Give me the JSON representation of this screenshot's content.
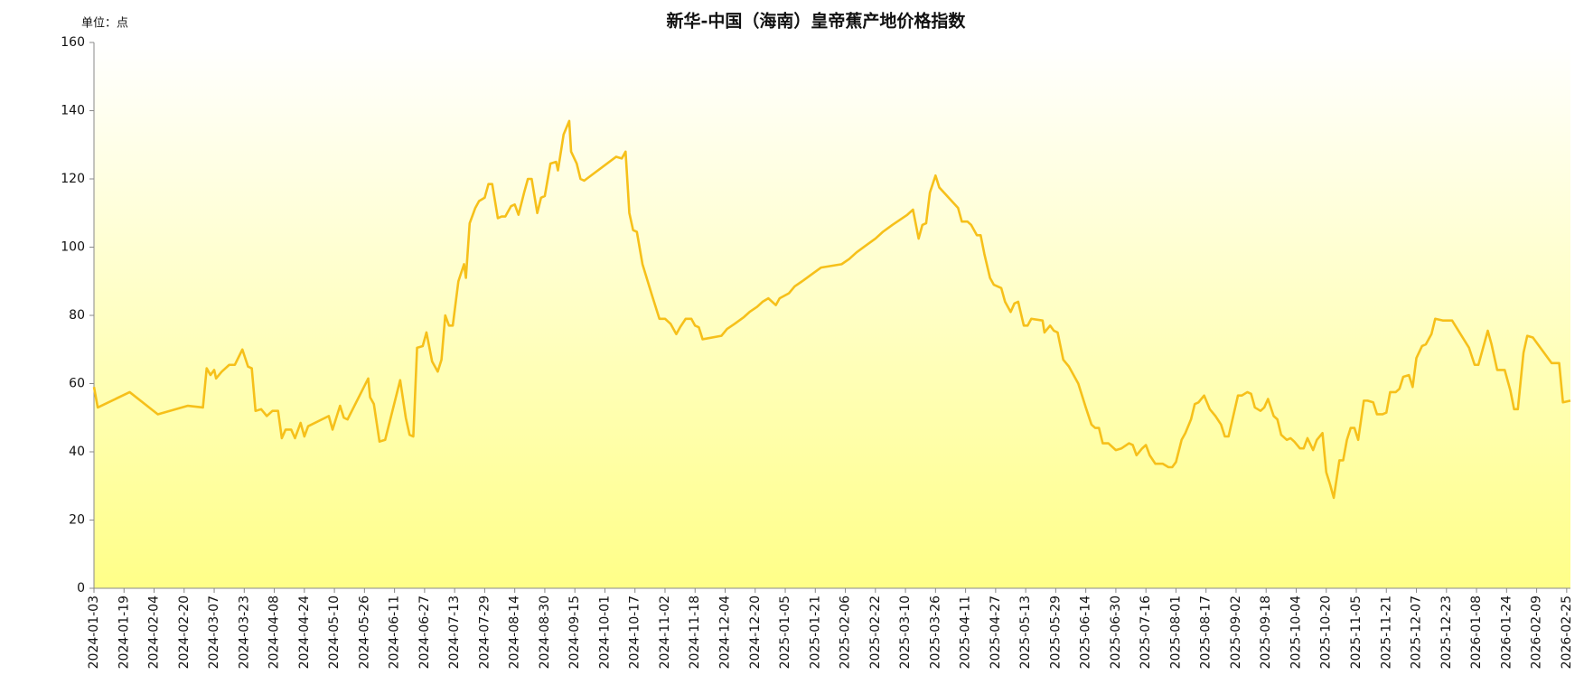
{
  "chart_data": {
    "type": "line",
    "title": "新华-中国（海南）皇帝蕉产地价格指数",
    "unit_label": "单位：点",
    "color": "#f6c01a",
    "xlim": [
      "2024-01-03",
      "2026-02-27"
    ],
    "xticks": [
      "2024-01-03",
      "2024-01-19",
      "2024-02-04",
      "2024-02-20",
      "2024-03-07",
      "2024-03-23",
      "2024-04-08",
      "2024-04-24",
      "2024-05-10",
      "2024-05-26",
      "2024-06-11",
      "2024-06-27",
      "2024-07-13",
      "2024-07-29",
      "2024-08-14",
      "2024-08-30",
      "2024-09-15",
      "2024-10-01",
      "2024-10-17",
      "2024-11-02",
      "2024-11-18",
      "2024-12-04",
      "2024-12-20",
      "2025-01-05",
      "2025-01-21",
      "2025-02-06",
      "2025-02-22",
      "2025-03-10",
      "2025-03-26",
      "2025-04-11",
      "2025-04-27",
      "2025-05-13",
      "2025-05-29",
      "2025-06-14",
      "2025-06-30",
      "2025-07-16",
      "2025-08-01",
      "2025-08-17",
      "2025-09-02",
      "2025-09-18",
      "2025-10-04",
      "2025-10-20",
      "2025-11-05",
      "2025-11-21",
      "2025-12-07",
      "2025-12-23",
      "2026-01-08",
      "2026-01-24",
      "2026-02-09",
      "2026-02-25"
    ],
    "ylim": [
      0,
      160
    ],
    "yticks": [
      0,
      20,
      40,
      60,
      80,
      100,
      120,
      140,
      160
    ],
    "x": [
      "2024-01-03",
      "2024-01-05",
      "2024-01-22",
      "2024-02-06",
      "2024-02-22",
      "2024-03-01",
      "2024-03-03",
      "2024-03-05",
      "2024-03-07",
      "2024-03-08",
      "2024-03-11",
      "2024-03-15",
      "2024-03-18",
      "2024-03-22",
      "2024-03-25",
      "2024-03-27",
      "2024-03-29",
      "2024-04-01",
      "2024-04-04",
      "2024-04-07",
      "2024-04-10",
      "2024-04-12",
      "2024-04-14",
      "2024-04-17",
      "2024-04-19",
      "2024-04-22",
      "2024-04-24",
      "2024-04-26",
      "2024-05-07",
      "2024-05-09",
      "2024-05-13",
      "2024-05-15",
      "2024-05-17",
      "2024-05-28",
      "2024-05-29",
      "2024-05-31",
      "2024-06-03",
      "2024-06-06",
      "2024-06-14",
      "2024-06-17",
      "2024-06-19",
      "2024-06-21",
      "2024-06-23",
      "2024-06-26",
      "2024-06-28",
      "2024-07-01",
      "2024-07-04",
      "2024-07-06",
      "2024-07-08",
      "2024-07-10",
      "2024-07-12",
      "2024-07-15",
      "2024-07-18",
      "2024-07-19",
      "2024-07-21",
      "2024-07-24",
      "2024-07-26",
      "2024-07-29",
      "2024-07-31",
      "2024-08-02",
      "2024-08-05",
      "2024-08-07",
      "2024-08-09",
      "2024-08-12",
      "2024-08-14",
      "2024-08-16",
      "2024-08-19",
      "2024-08-21",
      "2024-08-23",
      "2024-08-26",
      "2024-08-28",
      "2024-08-30",
      "2024-09-02",
      "2024-09-05",
      "2024-09-06",
      "2024-09-09",
      "2024-09-12",
      "2024-09-13",
      "2024-09-16",
      "2024-09-18",
      "2024-09-20",
      "2024-10-07",
      "2024-10-10",
      "2024-10-12",
      "2024-10-14",
      "2024-10-16",
      "2024-10-18",
      "2024-10-21",
      "2024-10-26",
      "2024-10-30",
      "2024-11-02",
      "2024-11-05",
      "2024-11-08",
      "2024-11-10",
      "2024-11-13",
      "2024-11-16",
      "2024-11-18",
      "2024-11-20",
      "2024-11-22",
      "2024-12-02",
      "2024-12-05",
      "2024-12-09",
      "2024-12-14",
      "2024-12-17",
      "2024-12-21",
      "2024-12-24",
      "2024-12-27",
      "2024-12-31",
      "2025-01-02",
      "2025-01-07",
      "2025-01-10",
      "2025-01-14",
      "2025-01-19",
      "2025-01-24",
      "2025-02-04",
      "2025-02-08",
      "2025-02-12",
      "2025-02-17",
      "2025-02-22",
      "2025-02-26",
      "2025-03-03",
      "2025-03-07",
      "2025-03-11",
      "2025-03-14",
      "2025-03-17",
      "2025-03-19",
      "2025-03-21",
      "2025-03-23",
      "2025-03-26",
      "2025-03-28",
      "2025-04-07",
      "2025-04-09",
      "2025-04-12",
      "2025-04-14",
      "2025-04-17",
      "2025-04-19",
      "2025-04-21",
      "2025-04-24",
      "2025-04-26",
      "2025-04-30",
      "2025-05-02",
      "2025-05-05",
      "2025-05-07",
      "2025-05-09",
      "2025-05-12",
      "2025-05-14",
      "2025-05-16",
      "2025-05-22",
      "2025-05-23",
      "2025-05-26",
      "2025-05-28",
      "2025-05-30",
      "2025-06-02",
      "2025-06-05",
      "2025-06-10",
      "2025-06-14",
      "2025-06-17",
      "2025-06-19",
      "2025-06-21",
      "2025-06-23",
      "2025-06-26",
      "2025-06-30",
      "2025-07-03",
      "2025-07-07",
      "2025-07-09",
      "2025-07-11",
      "2025-07-14",
      "2025-07-16",
      "2025-07-18",
      "2025-07-21",
      "2025-07-25",
      "2025-07-28",
      "2025-07-30",
      "2025-08-01",
      "2025-08-04",
      "2025-08-06",
      "2025-08-09",
      "2025-08-11",
      "2025-08-13",
      "2025-08-16",
      "2025-08-19",
      "2025-08-22",
      "2025-08-25",
      "2025-08-27",
      "2025-08-29",
      "2025-09-03",
      "2025-09-05",
      "2025-09-08",
      "2025-09-10",
      "2025-09-12",
      "2025-09-15",
      "2025-09-17",
      "2025-09-19",
      "2025-09-22",
      "2025-09-24",
      "2025-09-26",
      "2025-09-29",
      "2025-10-01",
      "2025-10-03",
      "2025-10-06",
      "2025-10-08",
      "2025-10-10",
      "2025-10-13",
      "2025-10-15",
      "2025-10-18",
      "2025-10-20",
      "2025-10-22",
      "2025-10-24",
      "2025-10-27",
      "2025-10-29",
      "2025-10-31",
      "2025-11-02",
      "2025-11-04",
      "2025-11-06",
      "2025-11-09",
      "2025-11-11",
      "2025-11-14",
      "2025-11-16",
      "2025-11-19",
      "2025-11-21",
      "2025-11-23",
      "2025-11-26",
      "2025-11-28",
      "2025-11-30",
      "2025-12-03",
      "2025-12-05",
      "2025-12-07",
      "2025-12-10",
      "2025-12-12",
      "2025-12-15",
      "2025-12-17",
      "2025-12-21",
      "2025-12-26",
      "2026-01-04",
      "2026-01-07",
      "2026-01-09",
      "2026-01-14",
      "2026-01-16",
      "2026-01-19",
      "2026-01-23",
      "2026-01-26",
      "2026-01-28",
      "2026-01-30",
      "2026-02-02",
      "2026-02-04",
      "2026-02-07",
      "2026-02-17",
      "2026-02-21",
      "2026-02-23",
      "2026-02-27"
    ],
    "values": [
      59,
      53,
      57.5,
      51,
      53.5,
      53,
      64.5,
      62.5,
      64,
      61.5,
      63.5,
      65.5,
      65.5,
      70,
      65,
      64.5,
      52,
      52.5,
      50.5,
      52,
      52,
      44,
      46.5,
      46.5,
      44,
      48.5,
      44.5,
      47.5,
      50.5,
      46.5,
      53.5,
      50,
      49.5,
      61.5,
      56,
      54,
      43,
      43.5,
      61,
      50,
      45,
      44.5,
      70.5,
      71,
      75,
      66.5,
      63.5,
      67,
      80,
      77,
      77,
      90,
      95,
      91,
      107,
      111.5,
      113.5,
      114.5,
      118.5,
      118.5,
      108.5,
      109,
      109,
      112,
      112.5,
      109.5,
      116,
      120,
      120,
      110,
      114.5,
      115,
      124.5,
      125,
      122.5,
      133,
      137,
      128,
      124.5,
      120,
      119.5,
      126.5,
      126,
      128,
      110,
      105,
      104.5,
      95,
      86,
      79,
      79,
      77.5,
      74.5,
      76.5,
      79,
      79,
      77,
      76.5,
      73,
      74,
      76,
      77.5,
      79.5,
      81,
      82.5,
      84,
      85,
      83,
      85,
      86.5,
      88.5,
      90,
      92,
      94,
      95,
      96.5,
      98.5,
      100.5,
      102.5,
      104.5,
      106.5,
      108,
      109.5,
      111,
      102.5,
      106.5,
      107,
      116,
      121,
      117.5,
      111.5,
      107.5,
      107.5,
      106.5,
      103.5,
      103.5,
      98,
      91,
      89,
      88,
      84,
      81,
      83.5,
      84,
      77,
      77,
      79,
      78.5,
      75,
      77,
      75.5,
      75,
      67,
      65,
      60,
      53,
      48,
      47,
      47,
      42.5,
      42.5,
      40.5,
      41,
      42.5,
      42,
      39,
      41,
      42,
      39,
      36.5,
      36.5,
      35.5,
      35.5,
      37,
      43.5,
      45.5,
      49.5,
      54,
      54.5,
      56.5,
      52.5,
      50.5,
      48,
      44.5,
      44.5,
      56.5,
      56.5,
      57.5,
      57,
      53,
      52,
      53,
      55.5,
      50.5,
      49.5,
      45,
      43.5,
      44,
      43,
      41,
      41,
      44,
      40.5,
      43.5,
      45.5,
      34,
      30.5,
      26.5,
      37.5,
      37.5,
      43.5,
      47,
      47,
      43.5,
      55,
      55,
      54.5,
      51,
      51,
      51.5,
      57.5,
      57.5,
      58.5,
      62,
      62.5,
      59,
      67.5,
      71,
      71.5,
      74.5,
      79,
      78.5,
      78.5,
      70.5,
      65.5,
      65.5,
      75.5,
      71.5,
      64,
      64,
      58,
      52.5,
      52.5,
      69,
      74,
      73.5,
      66,
      66,
      54.5,
      55
    ]
  }
}
